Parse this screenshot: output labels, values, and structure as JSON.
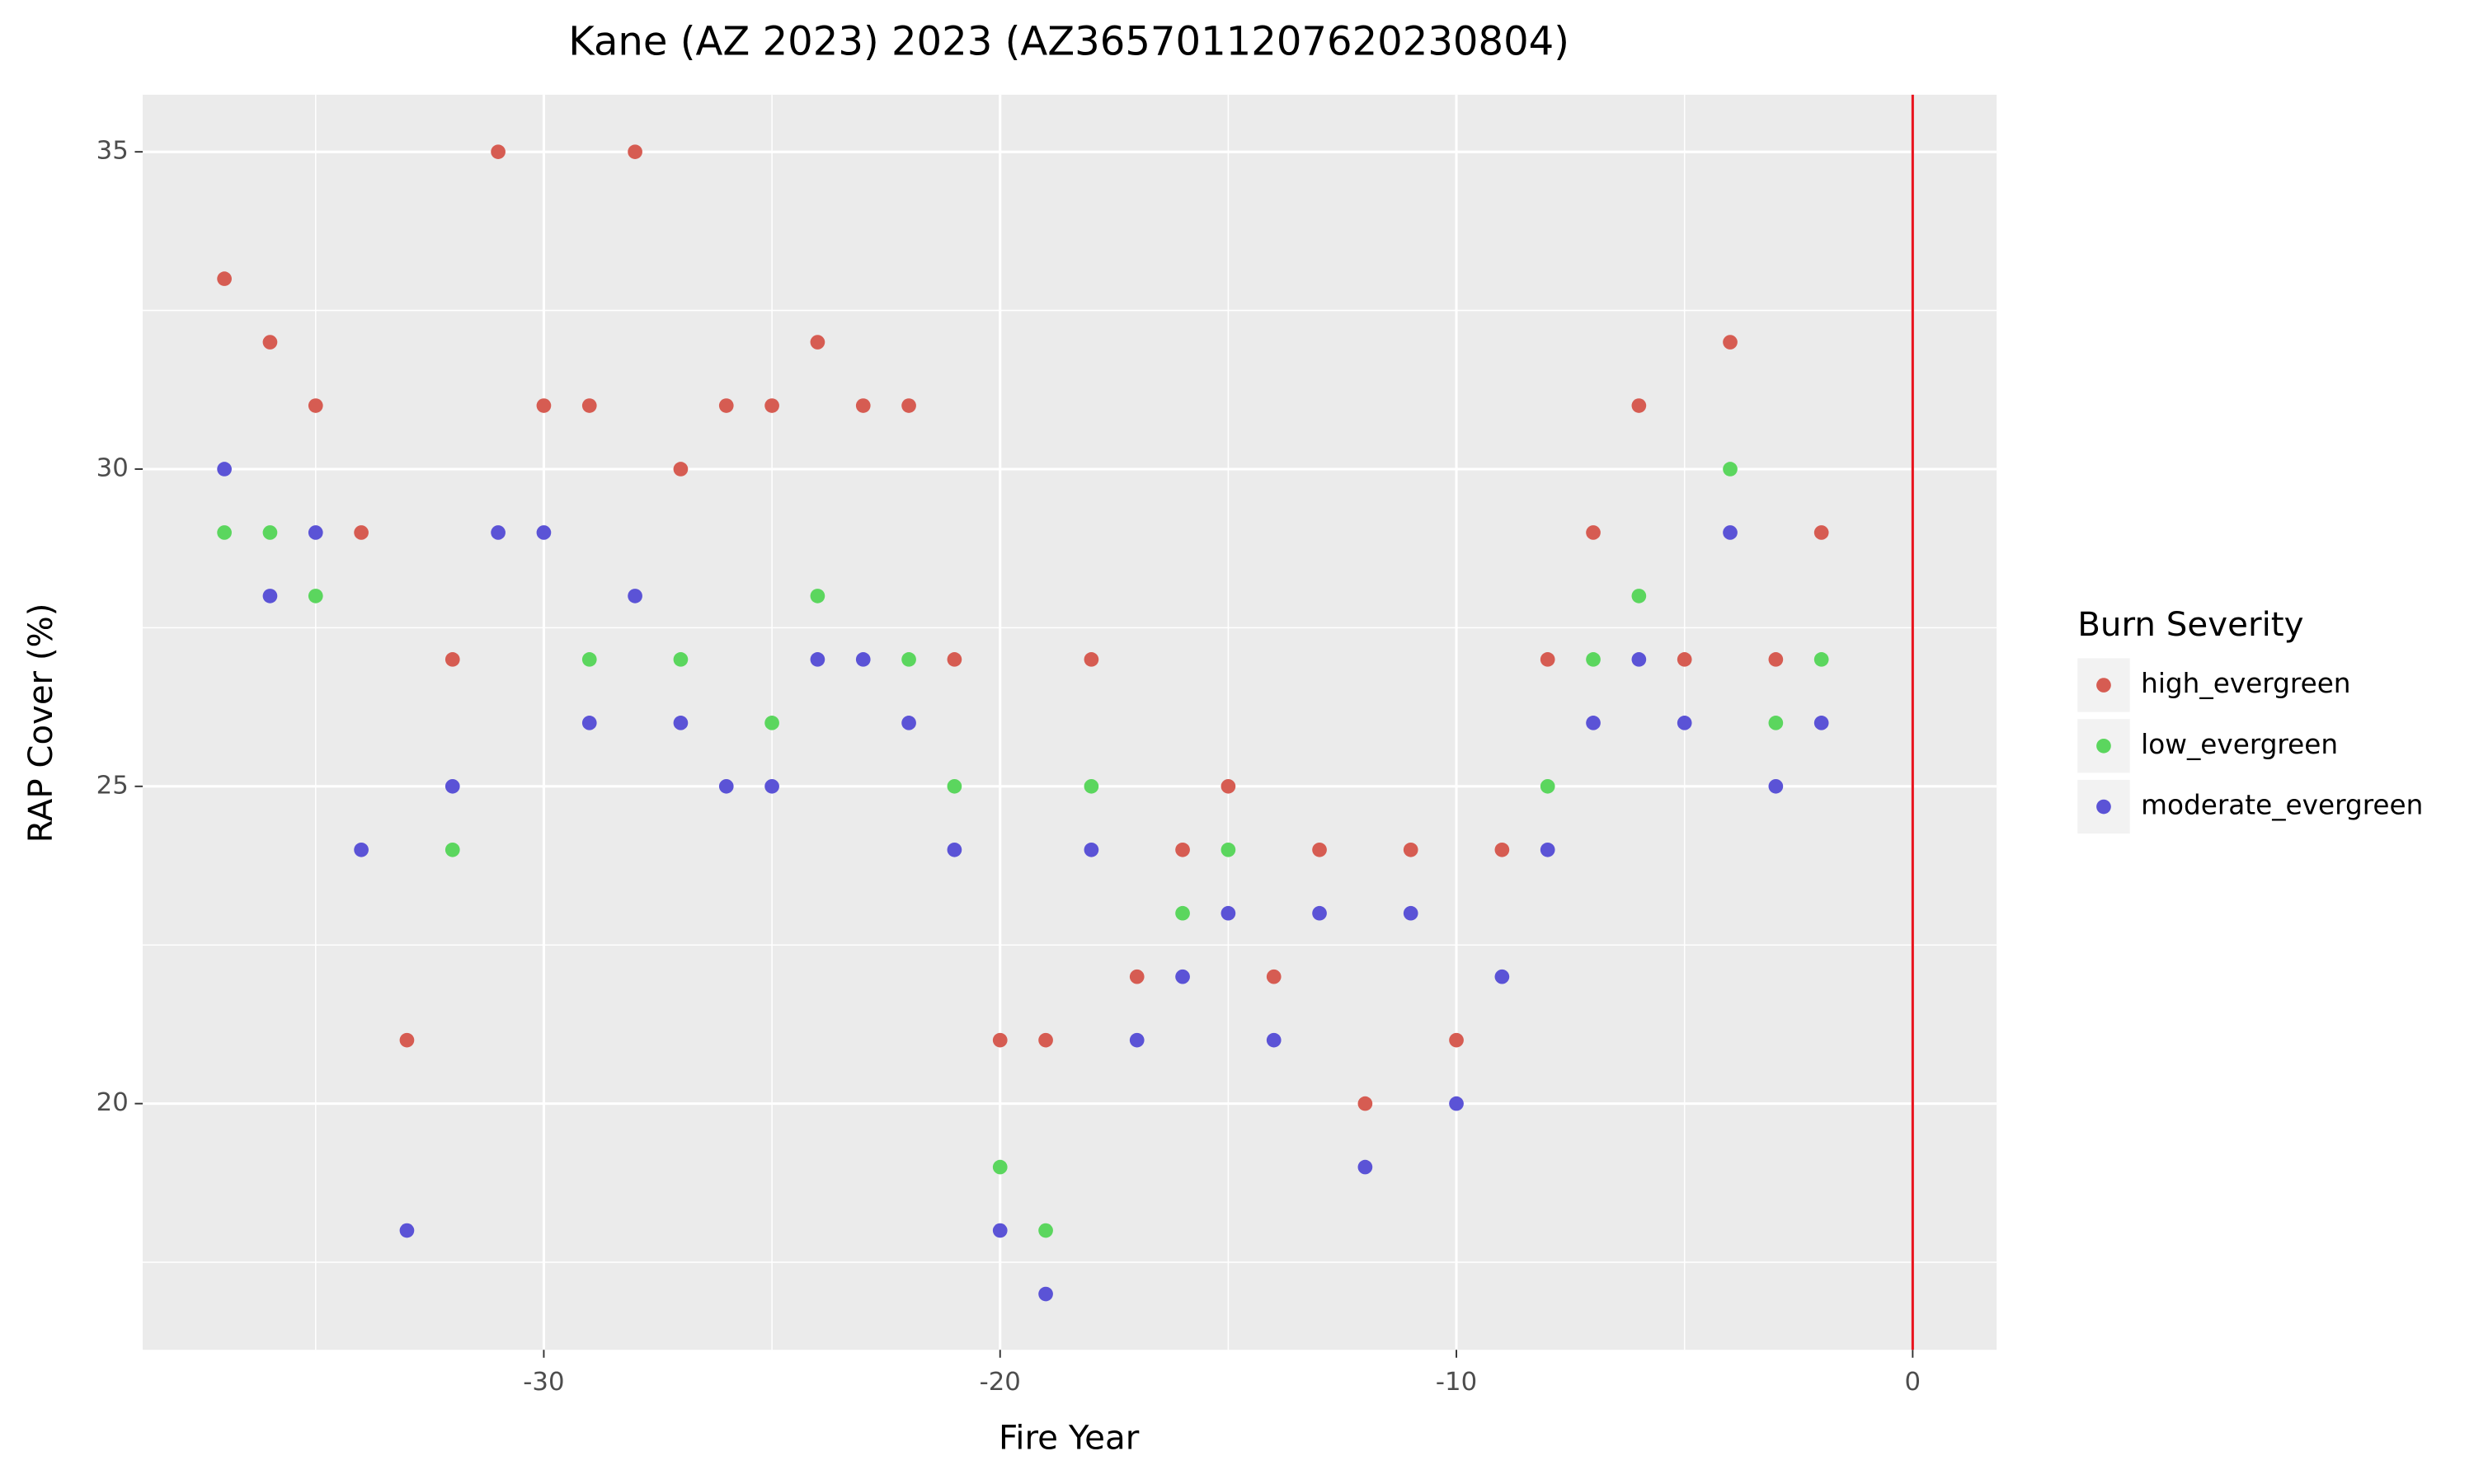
{
  "chart_data": {
    "type": "scatter",
    "title": "Kane (AZ 2023) 2023 (AZ3657011207620230804)",
    "x_label": "Fire Year",
    "y_label": "RAP Cover (%)",
    "legend_title": "Burn Severity",
    "legend_position": "right",
    "xlim": [
      -38.79,
      1.84
    ],
    "ylim": [
      16.12,
      35.9
    ],
    "xticks": [
      -30,
      -20,
      -10,
      0
    ],
    "yticks": [
      20,
      25,
      30,
      35
    ],
    "minor_xticks": [
      -35,
      -25,
      -15,
      -5
    ],
    "minor_yticks": [
      17.5,
      22.5,
      27.5,
      32.5
    ],
    "grid": true,
    "vline": {
      "x": 0,
      "color": "#e8141e"
    },
    "series": [
      {
        "name": "high_evergreen",
        "color": "#d65c52",
        "x": [
          -37,
          -36,
          -35,
          -34,
          -33,
          -32,
          -31,
          -30,
          -29,
          -28,
          -27,
          -26,
          -25,
          -24,
          -23,
          -22,
          -21,
          -20,
          -19,
          -18,
          -17,
          -16,
          -15,
          -14,
          -13,
          -12,
          -11,
          -10,
          -9,
          -8,
          -7,
          -6,
          -5,
          -4,
          -3,
          -2
        ],
        "values": [
          33,
          32,
          31,
          29,
          21,
          27,
          35,
          31,
          31,
          35,
          30,
          31,
          31,
          32,
          31,
          31,
          27,
          21,
          21,
          27,
          22,
          24,
          25,
          22,
          24,
          20,
          24,
          21,
          24,
          27,
          29,
          31,
          27,
          32,
          27,
          29
        ]
      },
      {
        "name": "low_evergreen",
        "color": "#5bd65e",
        "x": [
          -37,
          -36,
          -35,
          -32,
          -29,
          -27,
          -25,
          -24,
          -22,
          -21,
          -20,
          -19,
          -18,
          -16,
          -15,
          -8,
          -7,
          -6,
          -4,
          -3,
          -2
        ],
        "values": [
          29,
          29,
          28,
          24,
          27,
          27,
          26,
          28,
          27,
          25,
          19,
          18,
          25,
          23,
          24,
          25,
          27,
          28,
          30,
          26,
          27
        ]
      },
      {
        "name": "moderate_evergreen",
        "color": "#5b53d6",
        "x": [
          -37,
          -36,
          -35,
          -34,
          -33,
          -32,
          -31,
          -30,
          -29,
          -28,
          -27,
          -26,
          -25,
          -24,
          -23,
          -22,
          -21,
          -20,
          -19,
          -18,
          -17,
          -16,
          -15,
          -14,
          -13,
          -12,
          -11,
          -10,
          -9,
          -8,
          -7,
          -6,
          -5,
          -4,
          -3,
          -2
        ],
        "values": [
          30,
          28,
          29,
          24,
          18,
          25,
          29,
          29,
          26,
          28,
          26,
          25,
          25,
          27,
          27,
          26,
          24,
          18,
          17,
          24,
          21,
          22,
          23,
          21,
          23,
          19,
          23,
          20,
          22,
          24,
          26,
          27,
          26,
          29,
          25,
          26
        ]
      }
    ]
  }
}
